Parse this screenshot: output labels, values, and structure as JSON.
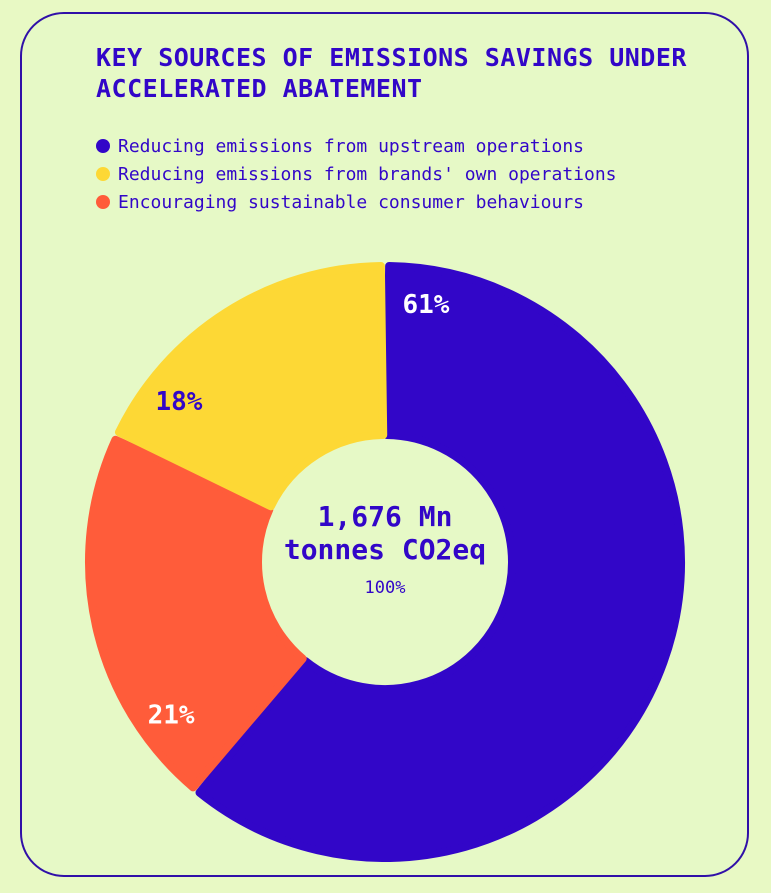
{
  "chart_data": {
    "type": "pie",
    "variant": "donut",
    "title": "KEY SOURCES OF EMISSIONS SAVINGS UNDER ACCELERATED ABATEMENT",
    "legend_placement": "top-left",
    "categories": [
      "Reducing emissions from upstream operations",
      "Reducing emissions from brands' own operations",
      "Encouraging sustainable consumer behaviours"
    ],
    "values": [
      61,
      18,
      21
    ],
    "value_labels": [
      "61%",
      "18%",
      "21%"
    ],
    "colors": [
      "#3206c8",
      "#fdd835",
      "#ff5c3a"
    ],
    "label_colors": [
      "#ffffff",
      "#3206c8",
      "#ffffff"
    ],
    "center_total": "1,676 Mn",
    "center_unit": "tonnes CO2eq",
    "center_percent": "100%"
  }
}
